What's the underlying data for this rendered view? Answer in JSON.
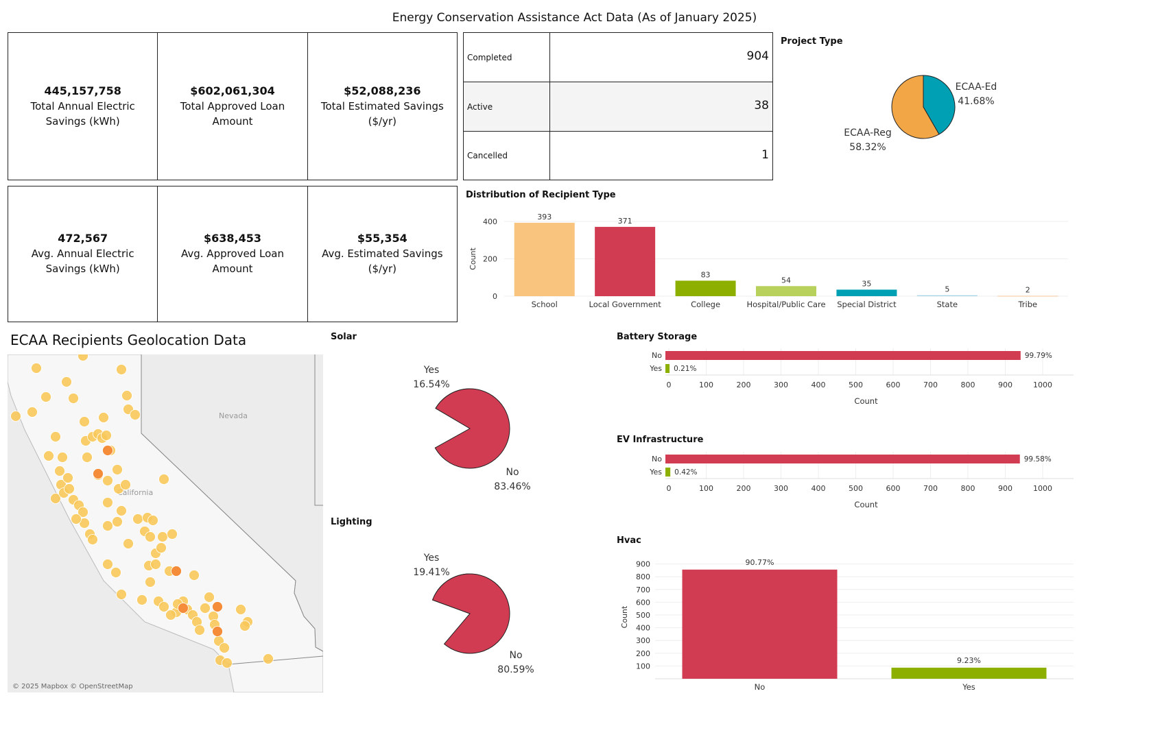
{
  "title": "Energy Conservation Assistance Act Data (As of January 2025)",
  "kpis_total": [
    {
      "value": "445,157,758",
      "label": "Total Annual Electric Savings (kWh)"
    },
    {
      "value": "$602,061,304",
      "label": "Total Approved Loan Amount"
    },
    {
      "value": "$52,088,236",
      "label": "Total Estimated Savings ($/yr)"
    }
  ],
  "kpis_avg": [
    {
      "value": "472,567",
      "label": "Avg. Annual Electric Savings (kWh)"
    },
    {
      "value": "$638,453",
      "label": "Avg. Approved Loan Amount"
    },
    {
      "value": "$55,354",
      "label": "Avg. Estimated Savings ($/yr)"
    }
  ],
  "status": [
    {
      "label": "Completed",
      "value": "904"
    },
    {
      "label": "Active",
      "value": "38"
    },
    {
      "label": "Cancelled",
      "value": "1"
    }
  ],
  "geo": {
    "title": "ECAA Recipients Geolocation Data",
    "state_label": "Nevada",
    "ca_label": "California",
    "attribution": "© 2025 Mapbox © OpenStreetMap"
  },
  "colors": {
    "red": "#d13c53",
    "green": "#8db000",
    "orange": "#f2a646",
    "teal": "#00a0b4",
    "peach": "#f8c47e",
    "lightgreen": "#b8d15d",
    "lightblue": "#a9d6e6",
    "tan": "#f6c79b"
  },
  "chart_data": [
    {
      "id": "project_type",
      "type": "pie",
      "title": "Project Type",
      "slices": [
        {
          "label": "ECAA-Ed",
          "pct_label": "41.68%",
          "value": 41.68,
          "color": "#00a0b4"
        },
        {
          "label": "ECAA-Reg",
          "pct_label": "58.32%",
          "value": 58.32,
          "color": "#f2a646"
        }
      ]
    },
    {
      "id": "recipient_type",
      "type": "bar",
      "title": "Distribution of Recipient Type",
      "ylabel": "Count",
      "ylim": [
        0,
        400
      ],
      "yticks": [
        0,
        200,
        400
      ],
      "categories": [
        "School",
        "Local Government",
        "College",
        "Hospital/Public Care",
        "Special District",
        "State",
        "Tribe"
      ],
      "values": [
        393,
        371,
        83,
        54,
        35,
        5,
        2
      ],
      "colors": [
        "#f8c47e",
        "#d13c53",
        "#8db000",
        "#b8d15d",
        "#00a0b4",
        "#a9d6e6",
        "#f6c79b"
      ]
    },
    {
      "id": "solar",
      "type": "pie",
      "title": "Solar",
      "slices": [
        {
          "label": "Yes",
          "pct_label": "16.54%",
          "value": 16.54,
          "color": "#8db000"
        },
        {
          "label": "No",
          "pct_label": "83.46%",
          "value": 83.46,
          "color": "#d13c53"
        }
      ]
    },
    {
      "id": "lighting",
      "type": "pie",
      "title": "Lighting",
      "slices": [
        {
          "label": "Yes",
          "pct_label": "19.41%",
          "value": 19.41,
          "color": "#8db000"
        },
        {
          "label": "No",
          "pct_label": "80.59%",
          "value": 80.59,
          "color": "#d13c53"
        }
      ]
    },
    {
      "id": "battery",
      "type": "bar",
      "orientation": "horizontal",
      "title": "Battery Storage",
      "xlabel": "Count",
      "xlim": [
        0,
        1000
      ],
      "xticks": [
        0,
        100,
        200,
        300,
        400,
        500,
        600,
        700,
        800,
        900,
        1000
      ],
      "categories": [
        "No",
        "Yes"
      ],
      "values": [
        941,
        2
      ],
      "labels": [
        "99.79%",
        "0.21%"
      ],
      "colors": [
        "#d13c53",
        "#8db000"
      ]
    },
    {
      "id": "ev",
      "type": "bar",
      "orientation": "horizontal",
      "title": "EV Infrastructure",
      "xlabel": "Count",
      "xlim": [
        0,
        1000
      ],
      "xticks": [
        0,
        100,
        200,
        300,
        400,
        500,
        600,
        700,
        800,
        900,
        1000
      ],
      "categories": [
        "No",
        "Yes"
      ],
      "values": [
        939,
        4
      ],
      "labels": [
        "99.58%",
        "0.42%"
      ],
      "colors": [
        "#d13c53",
        "#8db000"
      ]
    },
    {
      "id": "hvac",
      "type": "bar",
      "title": "Hvac",
      "ylabel": "Count",
      "ylim": [
        0,
        950
      ],
      "yticks": [
        100,
        200,
        300,
        400,
        500,
        600,
        700,
        800,
        900
      ],
      "categories": [
        "No",
        "Yes"
      ],
      "values": [
        856,
        87
      ],
      "labels": [
        "90.77%",
        "9.23%"
      ],
      "colors": [
        "#d13c53",
        "#8db000"
      ]
    }
  ]
}
